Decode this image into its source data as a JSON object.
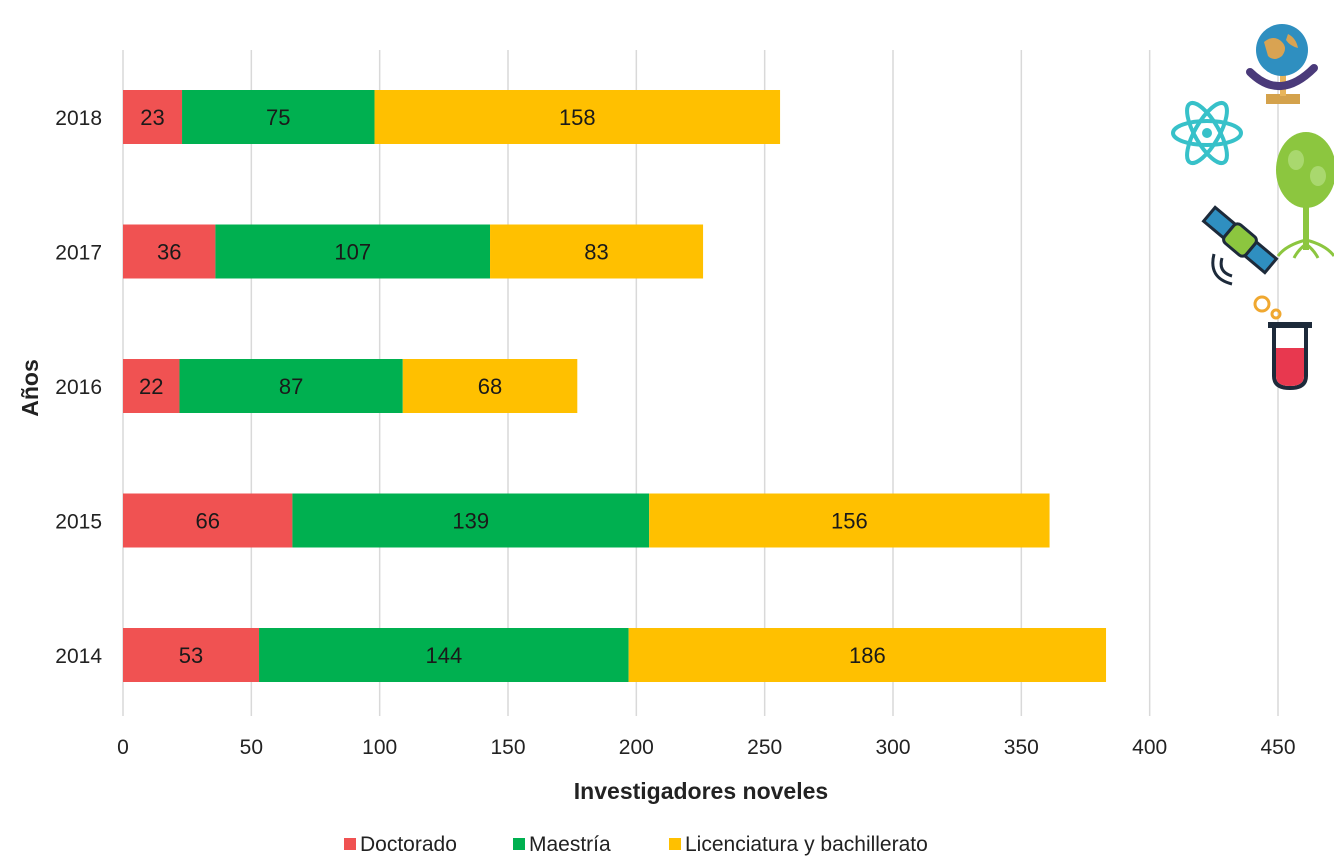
{
  "chart_data": {
    "type": "bar",
    "orientation": "horizontal",
    "stacked": true,
    "categories": [
      "2018",
      "2017",
      "2016",
      "2015",
      "2014"
    ],
    "series": [
      {
        "name": "Doctorado",
        "color": "#f05252",
        "values": [
          23,
          36,
          22,
          66,
          53
        ]
      },
      {
        "name": "Maestría",
        "color": "#00b050",
        "values": [
          75,
          107,
          87,
          139,
          144
        ]
      },
      {
        "name": "Licenciatura y bachillerato",
        "color": "#ffc000",
        "values": [
          158,
          83,
          68,
          156,
          186
        ]
      }
    ],
    "xlabel": "Investigadores noveles",
    "ylabel": "Años",
    "xlim": [
      0,
      450
    ],
    "xticks": [
      "0",
      "50",
      "100",
      "150",
      "200",
      "250",
      "300",
      "350",
      "400",
      "450"
    ],
    "grid": "vertical",
    "legend_position": "bottom"
  },
  "decorations": {
    "icons": [
      "globe-icon",
      "atom-icon",
      "tree-icon",
      "satellite-icon",
      "test-tube-icon"
    ]
  }
}
